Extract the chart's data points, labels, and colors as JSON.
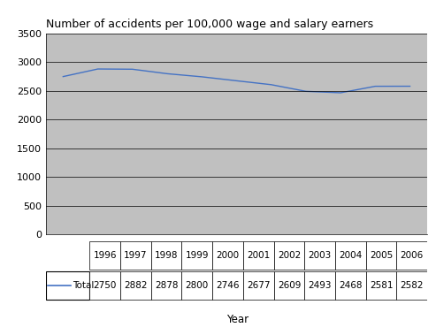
{
  "years": [
    1996,
    1997,
    1998,
    1999,
    2000,
    2001,
    2002,
    2003,
    2004,
    2005,
    2006
  ],
  "values": [
    2750,
    2882,
    2878,
    2800,
    2746,
    2677,
    2609,
    2493,
    2468,
    2581,
    2582
  ],
  "line_color": "#4472c4",
  "plot_bg_color": "#c0c0c0",
  "fig_bg_color": "#ffffff",
  "title": "Number of accidents per 100,000 wage and salary earners",
  "xlabel": "Year",
  "ylim": [
    0,
    3500
  ],
  "yticks": [
    0,
    500,
    1000,
    1500,
    2000,
    2500,
    3000,
    3500
  ],
  "legend_label": "Total",
  "title_fontsize": 9,
  "axis_fontsize": 8.5,
  "tick_fontsize": 8,
  "table_fontsize": 7.5
}
